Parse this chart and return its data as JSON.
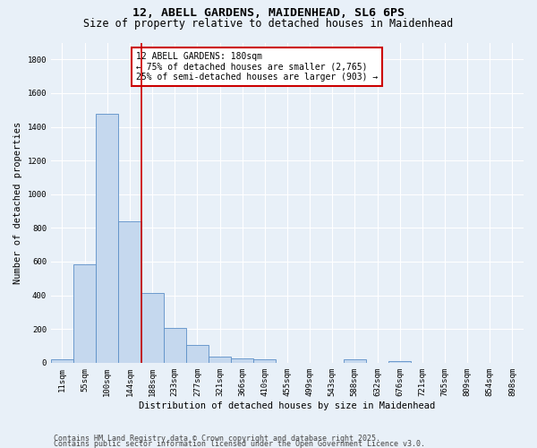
{
  "title_line1": "12, ABELL GARDENS, MAIDENHEAD, SL6 6PS",
  "title_line2": "Size of property relative to detached houses in Maidenhead",
  "xlabel": "Distribution of detached houses by size in Maidenhead",
  "ylabel": "Number of detached properties",
  "bar_color": "#c5d8ee",
  "bar_edge_color": "#5b8fc7",
  "categories": [
    "11sqm",
    "55sqm",
    "100sqm",
    "144sqm",
    "188sqm",
    "233sqm",
    "277sqm",
    "321sqm",
    "366sqm",
    "410sqm",
    "455sqm",
    "499sqm",
    "543sqm",
    "588sqm",
    "632sqm",
    "676sqm",
    "721sqm",
    "765sqm",
    "809sqm",
    "854sqm",
    "898sqm"
  ],
  "values": [
    18,
    585,
    1475,
    840,
    415,
    205,
    105,
    38,
    25,
    18,
    0,
    0,
    0,
    18,
    0,
    12,
    0,
    0,
    0,
    0,
    0
  ],
  "ylim": [
    0,
    1900
  ],
  "yticks": [
    0,
    200,
    400,
    600,
    800,
    1000,
    1200,
    1400,
    1600,
    1800
  ],
  "vline_x": 3.5,
  "vline_color": "#cc0000",
  "annotation_title": "12 ABELL GARDENS: 180sqm",
  "annotation_line1": "← 75% of detached houses are smaller (2,765)",
  "annotation_line2": "25% of semi-detached houses are larger (903) →",
  "footer1": "Contains HM Land Registry data © Crown copyright and database right 2025.",
  "footer2": "Contains public sector information licensed under the Open Government Licence v3.0.",
  "bg_color": "#e8f0f8",
  "plot_bg_color": "#e8f0f8",
  "grid_color": "#ffffff",
  "title_fontsize": 9.5,
  "subtitle_fontsize": 8.5,
  "axis_label_fontsize": 7.5,
  "tick_fontsize": 6.5,
  "annotation_fontsize": 7.0,
  "footer_fontsize": 6.0
}
